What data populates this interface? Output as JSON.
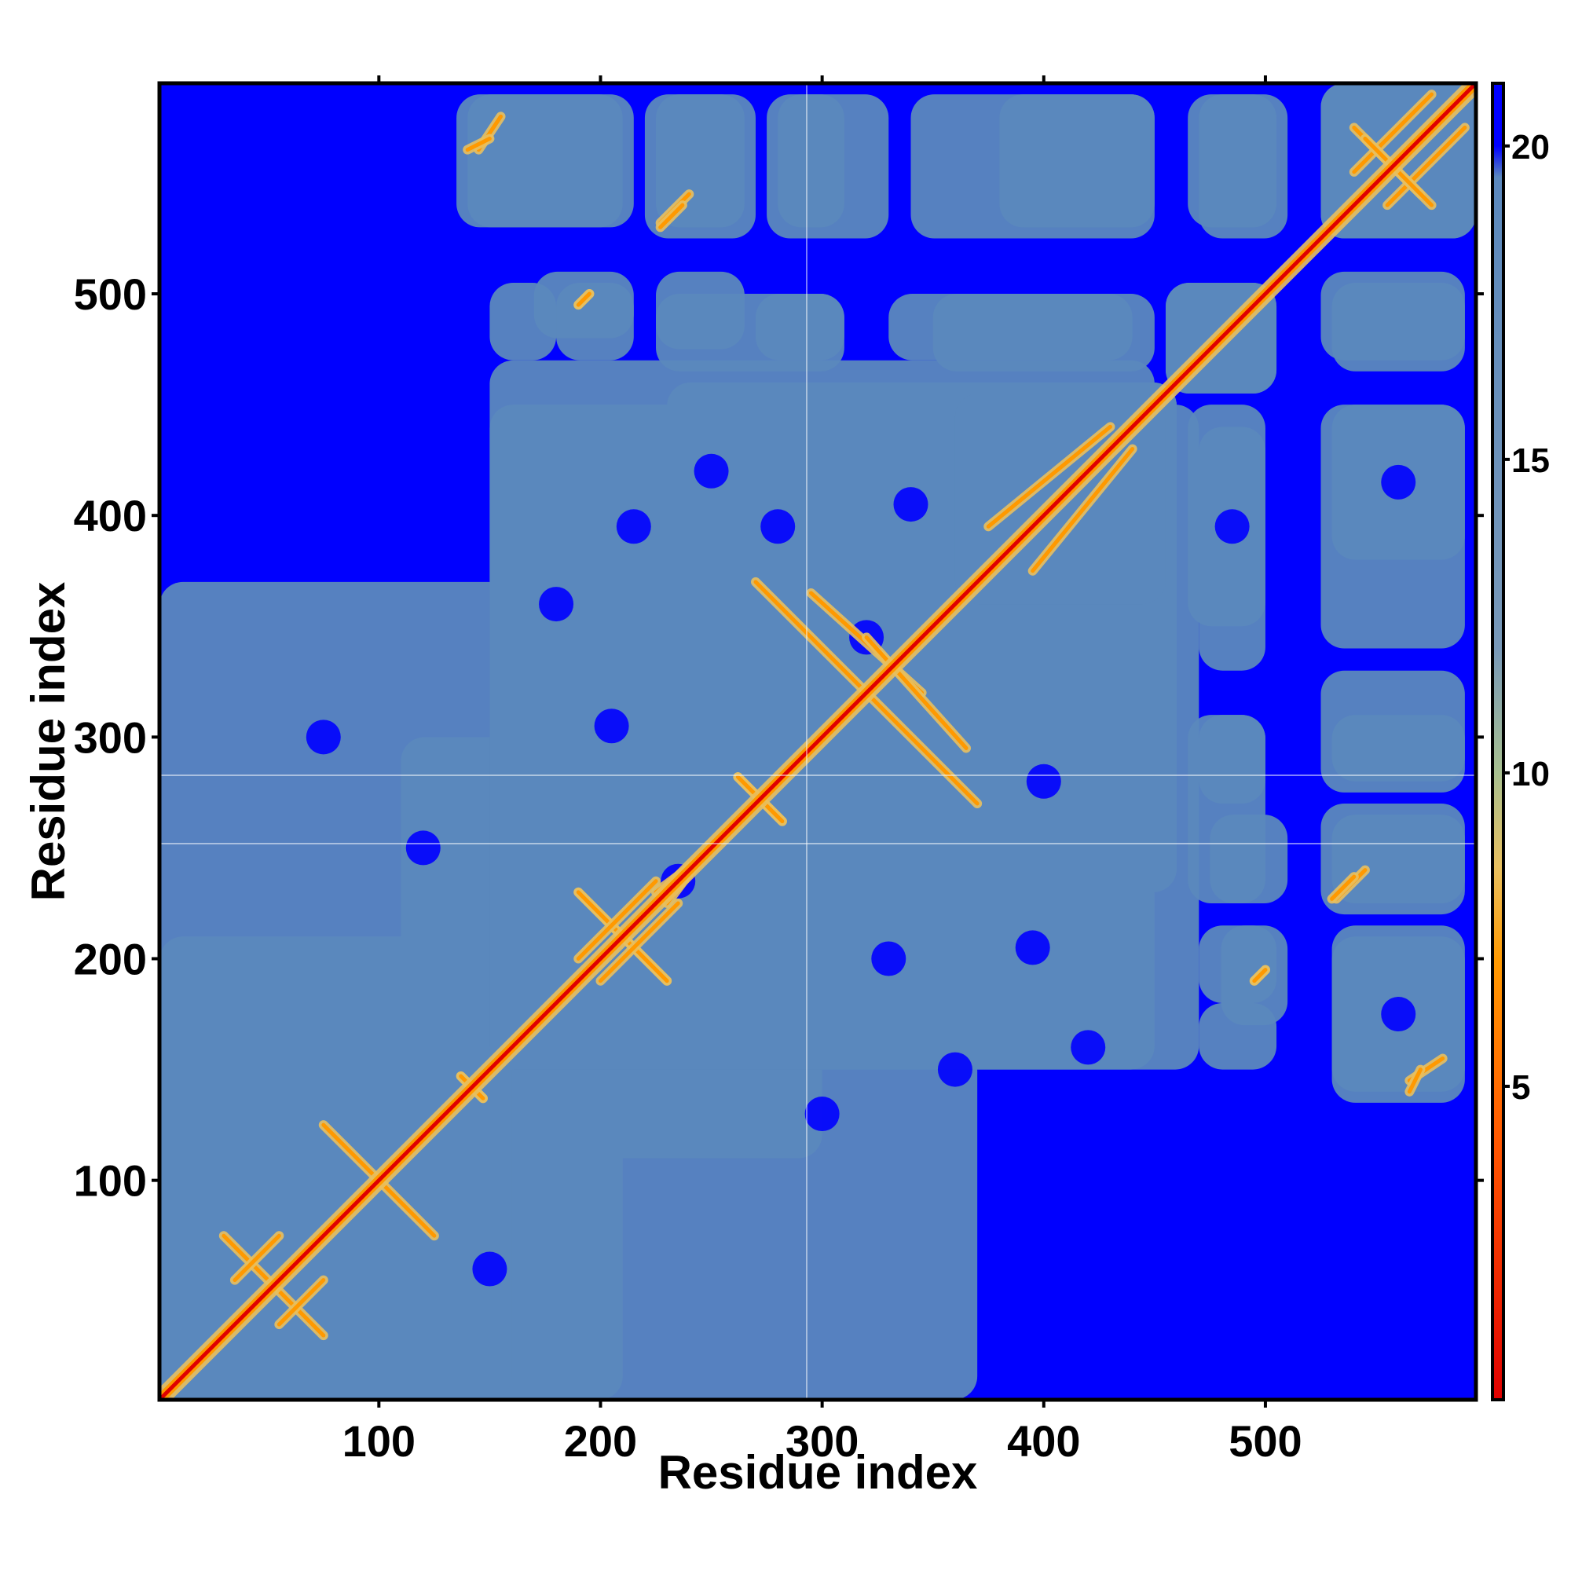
{
  "chart_data": {
    "type": "heatmap",
    "xlabel": "Residue index",
    "ylabel": "Residue index",
    "xlim": [
      1,
      595
    ],
    "ylim": [
      1,
      595
    ],
    "x_ticks": [
      100,
      200,
      300,
      400,
      500
    ],
    "y_ticks": [
      100,
      200,
      300,
      400,
      500
    ],
    "colorbar": {
      "ticks": [
        5,
        10,
        15,
        20
      ],
      "range": [
        0,
        21
      ],
      "stops": [
        {
          "value": 0,
          "color": "#e00000"
        },
        {
          "value": 4,
          "color": "#ff5500"
        },
        {
          "value": 7,
          "color": "#ff9900"
        },
        {
          "value": 8.5,
          "color": "#e8c060"
        },
        {
          "value": 10,
          "color": "#a8c090"
        },
        {
          "value": 12,
          "color": "#7898b8"
        },
        {
          "value": 19.5,
          "color": "#5b88bd"
        },
        {
          "value": 20,
          "color": "#0000ff"
        },
        {
          "value": 21,
          "color": "#0000ff"
        }
      ]
    },
    "colors": {
      "diagonal": "#e00000",
      "contact": "#ff9900",
      "near": "#e8c060",
      "mid": "#5b88bd",
      "far": "#0000ff"
    },
    "domain_blocks": [
      {
        "x": [
          1,
          210
        ],
        "y": [
          1,
          210
        ]
      },
      {
        "x": [
          140,
          300
        ],
        "y": [
          110,
          300
        ]
      },
      {
        "x": [
          280,
          460
        ],
        "y": [
          230,
          460
        ]
      },
      {
        "x": [
          1,
          370
        ],
        "y": [
          1,
          160
        ]
      },
      {
        "x": [
          150,
          470
        ],
        "y": [
          150,
          450
        ]
      },
      {
        "x": [
          360,
          455
        ],
        "y": [
          360,
          455
        ]
      },
      {
        "x": [
          455,
          505
        ],
        "y": [
          455,
          505
        ]
      },
      {
        "x": [
          525,
          595
        ],
        "y": [
          525,
          595
        ]
      }
    ],
    "off_diagonal_blocks": [
      {
        "x": [
          135,
          215
        ],
        "y": [
          530,
          590
        ]
      },
      {
        "x": [
          220,
          270
        ],
        "y": [
          525,
          590
        ]
      },
      {
        "x": [
          275,
          330
        ],
        "y": [
          525,
          590
        ]
      },
      {
        "x": [
          340,
          450
        ],
        "y": [
          525,
          590
        ]
      },
      {
        "x": [
          470,
          510
        ],
        "y": [
          525,
          590
        ]
      },
      {
        "x": [
          170,
          215
        ],
        "y": [
          480,
          510
        ]
      },
      {
        "x": [
          225,
          265
        ],
        "y": [
          475,
          510
        ]
      },
      {
        "x": [
          270,
          310
        ],
        "y": [
          470,
          500
        ]
      },
      {
        "x": [
          330,
          440
        ],
        "y": [
          470,
          500
        ]
      },
      {
        "x": [
          530,
          590
        ],
        "y": [
          465,
          505
        ]
      },
      {
        "x": [
          530,
          590
        ],
        "y": [
          380,
          450
        ]
      },
      {
        "x": [
          530,
          590
        ],
        "y": [
          280,
          310
        ]
      },
      {
        "x": [
          530,
          590
        ],
        "y": [
          225,
          265
        ]
      },
      {
        "x": [
          530,
          590
        ],
        "y": [
          140,
          210
        ]
      },
      {
        "x": [
          465,
          500
        ],
        "y": [
          350,
          450
        ]
      },
      {
        "x": [
          465,
          500
        ],
        "y": [
          225,
          310
        ]
      },
      {
        "x": [
          470,
          505
        ],
        "y": [
          180,
          215
        ]
      },
      {
        "x": [
          470,
          505
        ],
        "y": [
          150,
          180
        ]
      }
    ],
    "contact_lines": [
      {
        "x": [
          320,
          370
        ],
        "y": [
          320,
          270
        ]
      },
      {
        "x": [
          295,
          345
        ],
        "y": [
          365,
          320
        ]
      },
      {
        "x": [
          262,
          282
        ],
        "y": [
          282,
          262
        ]
      },
      {
        "x": [
          245,
          230
        ],
        "y": [
          245,
          225
        ]
      },
      {
        "x": [
          190,
          230
        ],
        "y": [
          230,
          190
        ]
      },
      {
        "x": [
          200,
          235
        ],
        "y": [
          190,
          225
        ]
      },
      {
        "x": [
          137,
          147
        ],
        "y": [
          147,
          137
        ]
      },
      {
        "x": [
          100,
          125
        ],
        "y": [
          100,
          75
        ]
      },
      {
        "x": [
          30,
          50
        ],
        "y": [
          75,
          55
        ]
      },
      {
        "x": [
          55,
          75
        ],
        "y": [
          35,
          55
        ]
      },
      {
        "x": [
          380,
          440
        ],
        "y": [
          380,
          440
        ]
      },
      {
        "x": [
          375,
          430
        ],
        "y": [
          395,
          440
        ]
      },
      {
        "x": [
          540,
          575
        ],
        "y": [
          555,
          590
        ]
      },
      {
        "x": [
          540,
          570
        ],
        "y": [
          575,
          545
        ]
      },
      {
        "x": [
          532,
          545
        ],
        "y": [
          227,
          240
        ]
      },
      {
        "x": [
          565,
          580
        ],
        "y": [
          145,
          155
        ]
      },
      {
        "x": [
          495,
          500
        ],
        "y": [
          190,
          195
        ]
      },
      {
        "x": [
          227,
          237
        ],
        "y": [
          530,
          540
        ]
      },
      {
        "x": [
          140,
          150
        ],
        "y": [
          565,
          570
        ]
      },
      {
        "x": [
          190,
          195
        ],
        "y": [
          495,
          500
        ]
      }
    ]
  }
}
